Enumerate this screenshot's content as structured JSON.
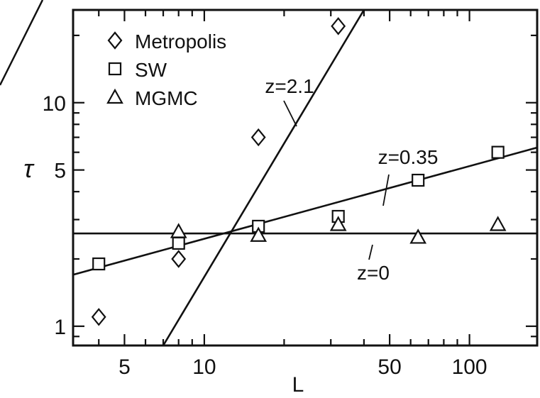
{
  "chart_data": {
    "type": "scatter",
    "xscale": "log",
    "yscale": "log",
    "xlim": [
      3.2,
      180
    ],
    "ylim": [
      0.82,
      26
    ],
    "xlabel": "L",
    "ylabel": "τ",
    "xticks": [
      {
        "value": 5,
        "label": "5"
      },
      {
        "value": 10,
        "label": "10"
      },
      {
        "value": 50,
        "label": "50"
      },
      {
        "value": 100,
        "label": "100"
      }
    ],
    "yticks": [
      {
        "value": 1,
        "label": "1"
      },
      {
        "value": 5,
        "label": "5"
      },
      {
        "value": 10,
        "label": "10"
      }
    ],
    "grid": false,
    "legend_position": "top-left",
    "series": [
      {
        "name": "Metropolis",
        "marker": "diamond",
        "points": [
          {
            "x": 4,
            "y": 1.1
          },
          {
            "x": 8,
            "y": 2.0
          },
          {
            "x": 16,
            "y": 7.0
          },
          {
            "x": 32,
            "y": 22.0
          }
        ]
      },
      {
        "name": "SW",
        "marker": "square",
        "points": [
          {
            "x": 4,
            "y": 1.9
          },
          {
            "x": 8,
            "y": 2.35
          },
          {
            "x": 16,
            "y": 2.8
          },
          {
            "x": 32,
            "y": 3.1
          },
          {
            "x": 64,
            "y": 4.5
          },
          {
            "x": 128,
            "y": 6.0
          }
        ]
      },
      {
        "name": "MGMC",
        "marker": "triangle",
        "points": [
          {
            "x": 8,
            "y": 2.65
          },
          {
            "x": 16,
            "y": 2.55
          },
          {
            "x": 32,
            "y": 2.85
          },
          {
            "x": 64,
            "y": 2.5
          },
          {
            "x": 128,
            "y": 2.85
          }
        ]
      }
    ],
    "fit_lines": [
      {
        "label": "z=2.1",
        "points": [
          {
            "x": 7,
            "y": 0.82
          },
          {
            "x": 40,
            "y": 26
          }
        ]
      },
      {
        "label": "z=0.35",
        "points": [
          {
            "x": 3.2,
            "y": 1.7
          },
          {
            "x": 180,
            "y": 6.3
          }
        ]
      },
      {
        "label": "z=0",
        "points": [
          {
            "x": 3.2,
            "y": 2.6
          },
          {
            "x": 180,
            "y": 2.6
          }
        ]
      }
    ]
  }
}
